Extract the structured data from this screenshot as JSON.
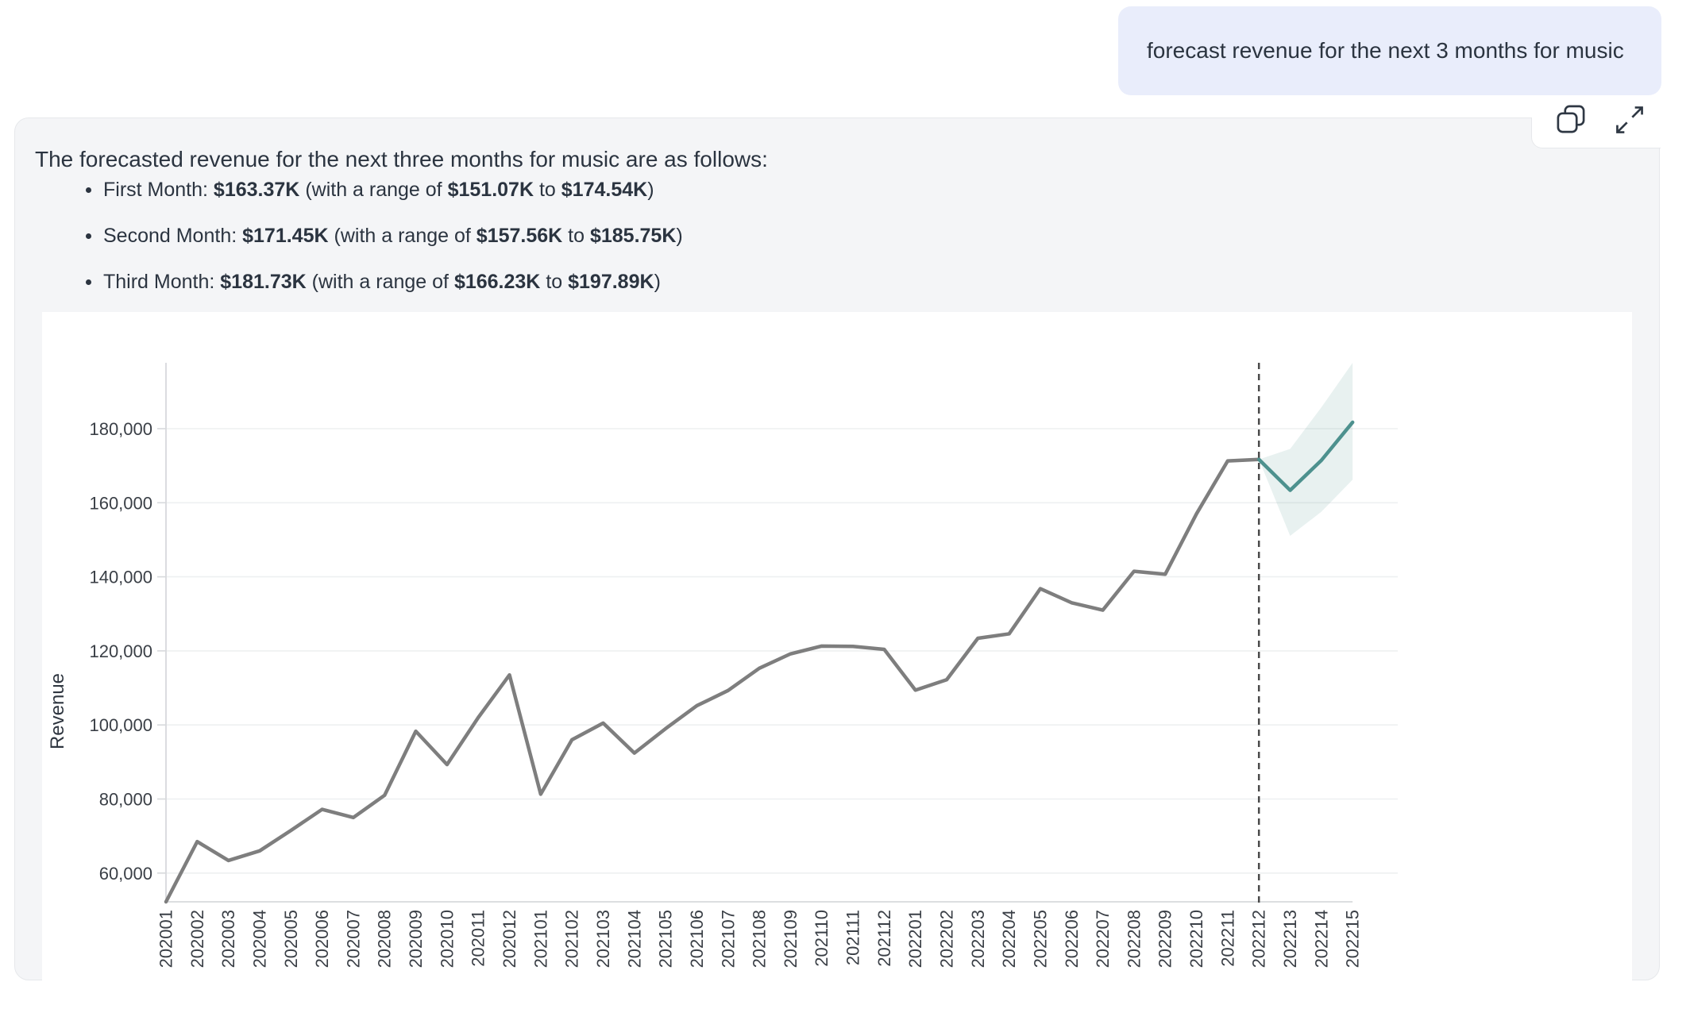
{
  "query_bubble": {
    "text": "forecast revenue for the next 3 months for music"
  },
  "toolbar": {
    "copy_icon": "copy",
    "expand_icon": "expand"
  },
  "card": {
    "intro": "The forecasted revenue for the next three months for music are as follows:",
    "bullets": [
      {
        "label": "First Month: ",
        "value": "$163.37K",
        "range_open": "(with a range of ",
        "low": "$151.07K",
        "to": " to ",
        "high": "$174.54K",
        "range_close": ")"
      },
      {
        "label": "Second Month: ",
        "value": "$171.45K",
        "range_open": "(with a range of ",
        "low": "$157.56K",
        "to": " to ",
        "high": "$185.75K",
        "range_close": ")"
      },
      {
        "label": "Third Month: ",
        "value": "$181.73K",
        "range_open": "(with a range of ",
        "low": "$166.23K",
        "to": " to ",
        "high": "$197.89K",
        "range_close": ")"
      }
    ]
  },
  "chart_data": {
    "type": "line",
    "title": "",
    "ylabel": "Revenue",
    "xlabel": "",
    "grid": true,
    "legend": false,
    "x_labels": [
      "202001",
      "202002",
      "202003",
      "202004",
      "202005",
      "202006",
      "202007",
      "202008",
      "202009",
      "202010",
      "202011",
      "202012",
      "202101",
      "202102",
      "202103",
      "202104",
      "202105",
      "202106",
      "202107",
      "202108",
      "202109",
      "202110",
      "202111",
      "202112",
      "202201",
      "202202",
      "202203",
      "202204",
      "202205",
      "202206",
      "202207",
      "202208",
      "202209",
      "202210",
      "202211",
      "202212",
      "202213",
      "202214",
      "202215"
    ],
    "y_ticks": {
      "values": [
        60000,
        80000,
        100000,
        120000,
        140000,
        160000,
        180000
      ],
      "labels": [
        "60,000",
        "80,000",
        "100,000",
        "120,000",
        "140,000",
        "160,000",
        "180,000"
      ]
    },
    "axis_range": {
      "ymin": 52000,
      "ymax": 197890
    },
    "series": [
      {
        "name": "history",
        "start_index": 0,
        "color": "#7e7e7e",
        "values": [
          52000,
          68500,
          63400,
          66000,
          71500,
          77200,
          75000,
          81000,
          98300,
          89300,
          102000,
          113500,
          81300,
          96000,
          100500,
          92400,
          99000,
          105200,
          109300,
          115300,
          119200,
          121300,
          121200,
          120400,
          109400,
          112200,
          123400,
          124600,
          136800,
          133000,
          131000,
          141500,
          140700,
          157000,
          171300,
          171700
        ]
      },
      {
        "name": "forecast",
        "start_index": 35,
        "color": "#4d918e",
        "values": [
          171700,
          163370,
          171450,
          181730
        ]
      }
    ],
    "forecast_band": {
      "start_index": 35,
      "low": [
        171700,
        151070,
        157560,
        166230
      ],
      "high": [
        171700,
        174540,
        185750,
        197890
      ],
      "fill": "rgba(77,145,142,0.13)"
    },
    "forecast_start_label": "202212"
  },
  "colors": {
    "bubble_bg": "#e9edfb",
    "card_bg": "#f4f5f7",
    "history_line": "#7e7e7e",
    "forecast_line": "#4d918e",
    "divider_line": "#4a4a4a",
    "grid_line": "#eef0f1",
    "axis_line": "#d7d9dc",
    "text": "#2b3440"
  }
}
